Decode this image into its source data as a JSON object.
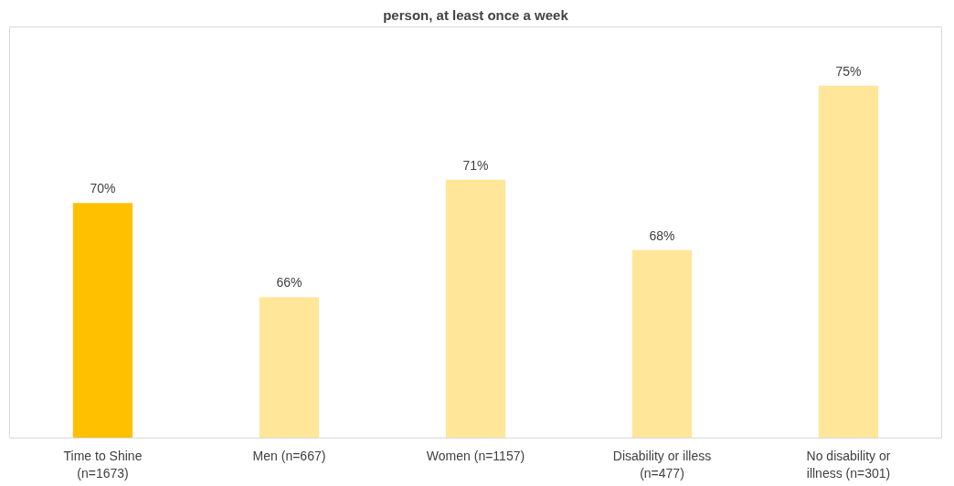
{
  "chart_data": {
    "type": "bar",
    "title": "person, at least once a week",
    "categories": [
      "Time to Shine\n(n=1673)",
      "Men (n=667)",
      "Women (n=1157)",
      "Disability or illess\n(n=477)",
      "No disability or\nillness (n=301)"
    ],
    "values": [
      70,
      66,
      71,
      68,
      75
    ],
    "colors": [
      "#ffc000",
      "#ffe699",
      "#ffe699",
      "#ffe699",
      "#ffe699"
    ],
    "value_labels": [
      "70%",
      "66%",
      "71%",
      "68%",
      "75%"
    ],
    "ylim": [
      60,
      77.5
    ],
    "tick_labels": "x",
    "grid": false
  }
}
